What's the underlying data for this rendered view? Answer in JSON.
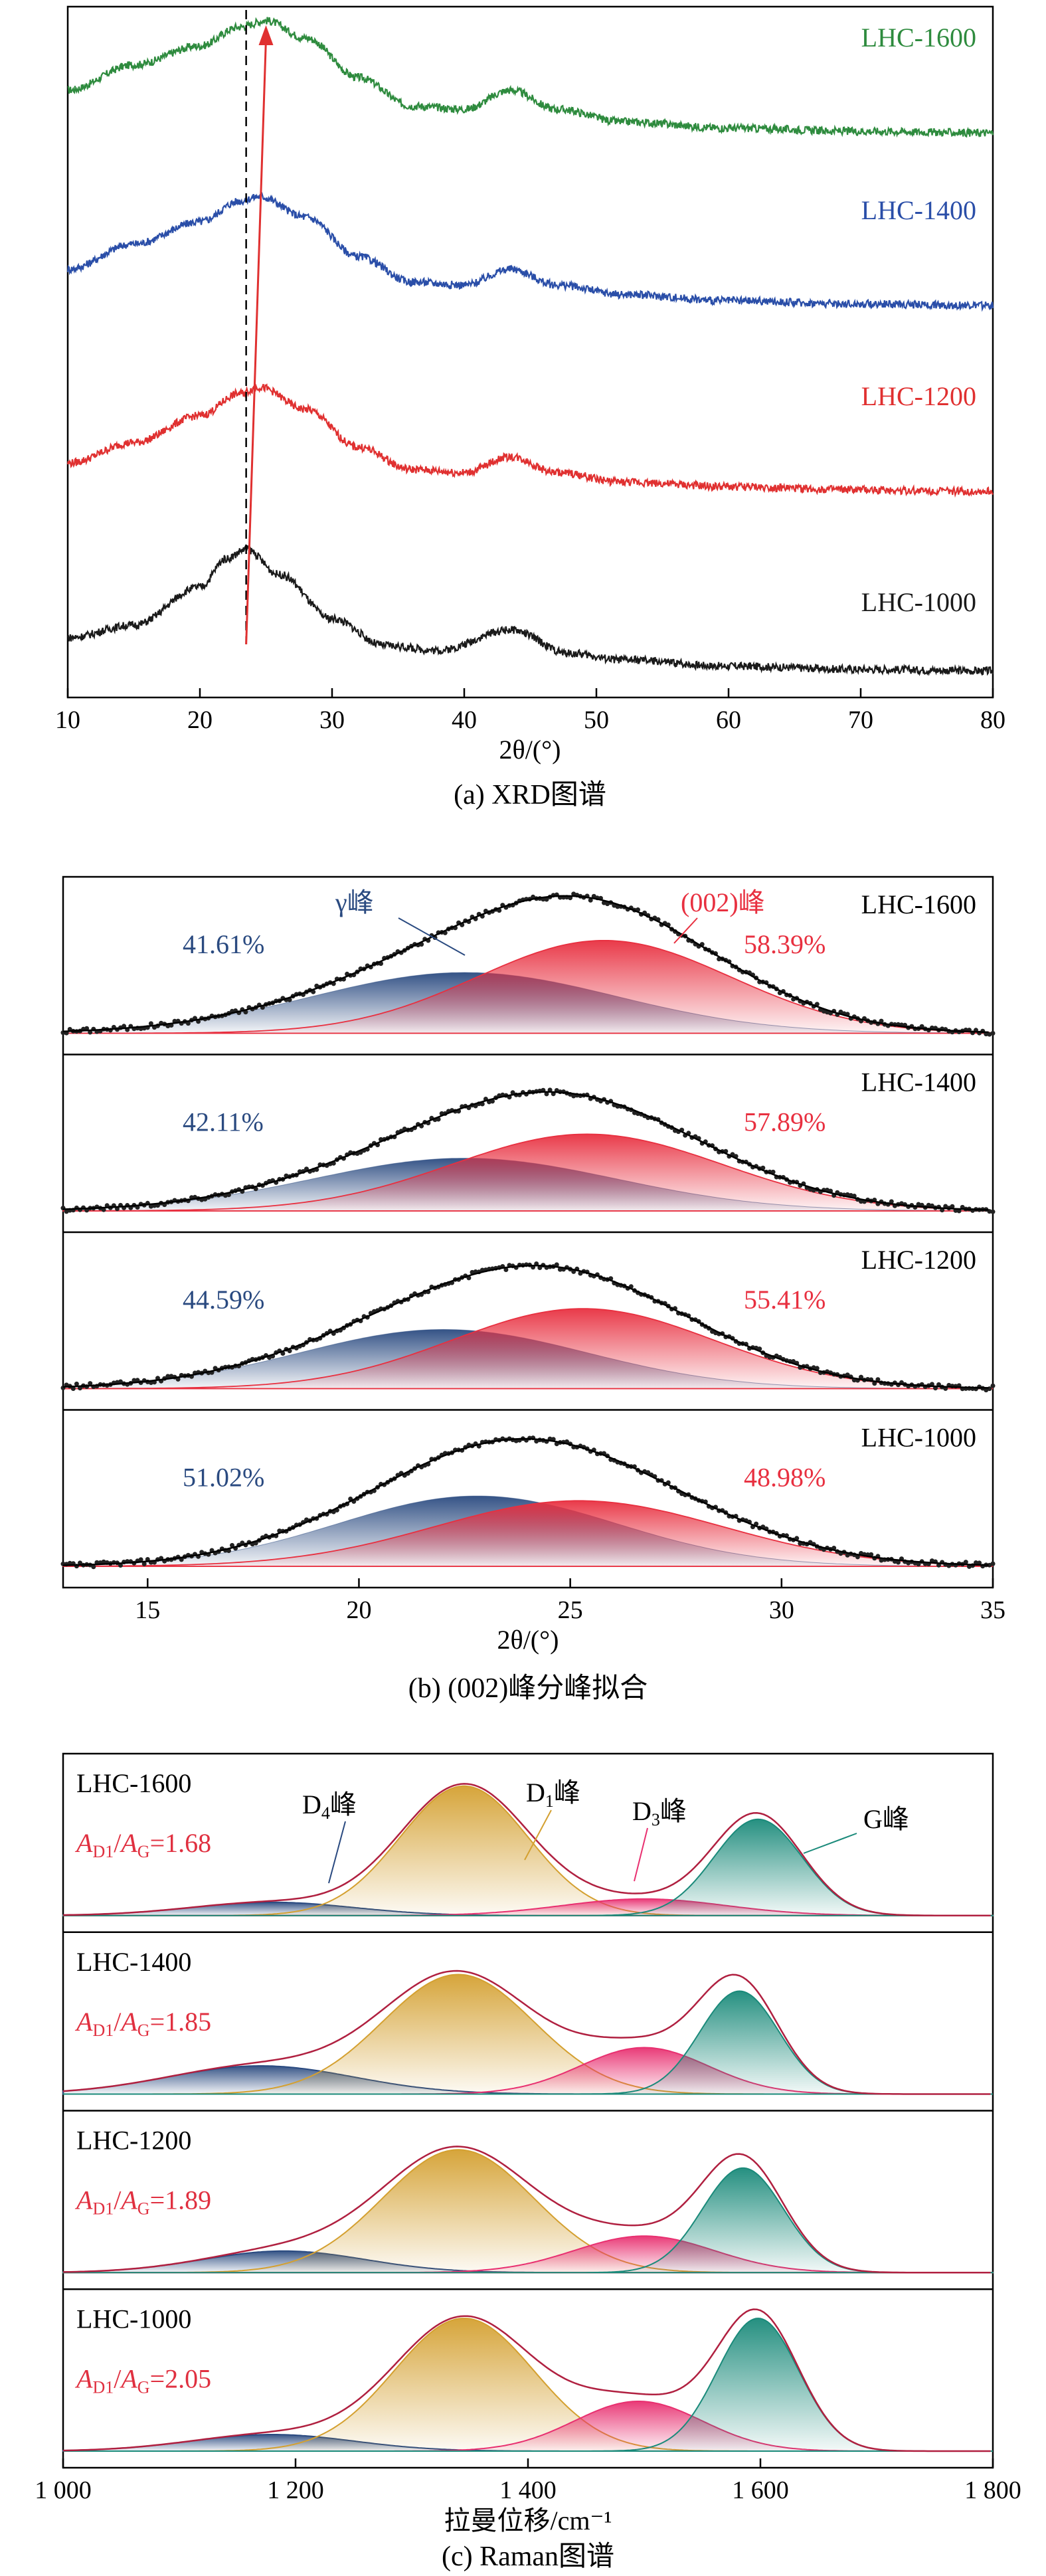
{
  "chart_data": [
    {
      "type": "line",
      "panel": "a",
      "caption": "(a) XRD图谱",
      "xlabel": "2θ/(°)",
      "xlim": [
        10,
        80
      ],
      "xticks": [
        "10",
        "20",
        "30",
        "40",
        "50",
        "60",
        "70",
        "80"
      ],
      "y_axis_ticks": false,
      "reference_line_x": 23.5,
      "shift_arrow": {
        "from": [
          23.5,
          "LHC-1000"
        ],
        "to": [
          25.0,
          "LHC-1600"
        ],
        "color": "#e03030"
      },
      "series": [
        {
          "name": "LHC-1600",
          "color": "#2e8b3e",
          "peaks_2theta": [
            25.0,
            43.5
          ],
          "x": [
            10,
            15,
            20,
            23,
            25,
            28,
            32,
            36,
            40,
            43.5,
            47,
            52,
            60,
            70,
            80
          ],
          "y": [
            0.62,
            0.78,
            0.9,
            1.02,
            1.06,
            0.95,
            0.7,
            0.52,
            0.5,
            0.62,
            0.5,
            0.42,
            0.38,
            0.36,
            0.35
          ]
        },
        {
          "name": "LHC-1400",
          "color": "#2a4ea8",
          "peaks_2theta": [
            24.0,
            43.5
          ],
          "x": [
            10,
            15,
            20,
            23,
            24.5,
            28,
            32,
            36,
            40,
            43.5,
            47,
            52,
            60,
            70,
            80
          ],
          "y": [
            0.52,
            0.68,
            0.82,
            0.95,
            0.98,
            0.85,
            0.6,
            0.44,
            0.42,
            0.52,
            0.42,
            0.36,
            0.32,
            0.3,
            0.29
          ]
        },
        {
          "name": "LHC-1200",
          "color": "#e03030",
          "peaks_2theta": [
            24.0,
            43.5
          ],
          "x": [
            10,
            15,
            20,
            23,
            24.5,
            28,
            32,
            36,
            40,
            43.5,
            47,
            52,
            60,
            70,
            80
          ],
          "y": [
            0.42,
            0.55,
            0.72,
            0.86,
            0.9,
            0.76,
            0.52,
            0.38,
            0.36,
            0.46,
            0.36,
            0.3,
            0.27,
            0.25,
            0.24
          ]
        },
        {
          "name": "LHC-1000",
          "color": "#1a1a1a",
          "peaks_2theta": [
            23.5,
            43.5
          ],
          "x": [
            10,
            15,
            20,
            22,
            23.5,
            26,
            30,
            34,
            38,
            43.5,
            48,
            52,
            60,
            70,
            80
          ],
          "y": [
            0.3,
            0.38,
            0.62,
            0.8,
            0.86,
            0.7,
            0.42,
            0.25,
            0.22,
            0.35,
            0.2,
            0.16,
            0.12,
            0.1,
            0.09
          ]
        }
      ]
    },
    {
      "type": "area",
      "panel": "b",
      "caption": "(b) (002)峰分峰拟合",
      "xlabel": "2θ/(°)",
      "xlim": [
        13,
        35
      ],
      "xticks": [
        "15",
        "20",
        "25",
        "30",
        "35"
      ],
      "annotations": {
        "gamma": "γ峰",
        "p002": "(002)峰"
      },
      "gamma_color": "#2a4a80",
      "p002_color": "#e83040",
      "subpanels": [
        {
          "name": "LHC-1600",
          "gamma_pct": "41.61%",
          "p002_pct": "58.39%",
          "gamma_center": 22.5,
          "gamma_width": 3.6,
          "gamma_height": 0.38,
          "p002_center": 25.8,
          "p002_width": 3.0,
          "p002_height": 0.58
        },
        {
          "name": "LHC-1400",
          "gamma_pct": "42.11%",
          "p002_pct": "57.89%",
          "gamma_center": 22.5,
          "gamma_width": 3.6,
          "gamma_height": 0.33,
          "p002_center": 25.4,
          "p002_width": 3.2,
          "p002_height": 0.48
        },
        {
          "name": "LHC-1200",
          "gamma_pct": "44.59%",
          "p002_pct": "55.41%",
          "gamma_center": 22.0,
          "gamma_width": 3.4,
          "gamma_height": 0.37,
          "p002_center": 25.3,
          "p002_width": 3.1,
          "p002_height": 0.5
        },
        {
          "name": "LHC-1000",
          "gamma_pct": "51.02%",
          "p002_pct": "48.98%",
          "gamma_center": 22.8,
          "gamma_width": 3.3,
          "gamma_height": 0.44,
          "p002_center": 25.2,
          "p002_width": 3.4,
          "p002_height": 0.41
        }
      ]
    },
    {
      "type": "area",
      "panel": "c",
      "caption": "(c) Raman图谱",
      "xlabel": "拉曼位移/cm⁻¹",
      "xlim": [
        1000,
        1800
      ],
      "xticks": [
        "1 000",
        "1 200",
        "1 400",
        "1 600",
        "1 800"
      ],
      "peak_labels": {
        "D4": "D",
        "D4_sub": "4",
        "D1": "D",
        "D1_sub": "1",
        "D3": "D",
        "D3_sub": "3",
        "G": "G",
        "suffix": "峰"
      },
      "ratio_label": {
        "a": "A",
        "d1": "D1",
        "g": "G"
      },
      "colors": {
        "D4": "#2a4a80",
        "D1": "#d4a030",
        "D3": "#e83070",
        "G": "#1a8a7a",
        "fit": "#b02040"
      },
      "subpanels": [
        {
          "name": "LHC-1600",
          "ratio": "=1.68",
          "peaks": {
            "D4": [
              1180,
              70,
              0.08
            ],
            "D1": [
              1345,
              55,
              0.78
            ],
            "D3": [
              1500,
              70,
              0.1
            ],
            "G": [
              1598,
              38,
              0.58
            ]
          }
        },
        {
          "name": "LHC-1400",
          "ratio": "=1.85",
          "peaks": {
            "D4": [
              1170,
              80,
              0.17
            ],
            "D1": [
              1340,
              65,
              0.72
            ],
            "D3": [
              1500,
              55,
              0.28
            ],
            "G": [
              1582,
              34,
              0.62
            ]
          }
        },
        {
          "name": "LHC-1200",
          "ratio": "=1.89",
          "peaks": {
            "D4": [
              1190,
              70,
              0.13
            ],
            "D1": [
              1340,
              65,
              0.74
            ],
            "D3": [
              1500,
              60,
              0.22
            ],
            "G": [
              1585,
              35,
              0.63
            ]
          }
        },
        {
          "name": "LHC-1000",
          "ratio": "=2.05",
          "peaks": {
            "D4": [
              1180,
              70,
              0.1
            ],
            "D1": [
              1345,
              60,
              0.8
            ],
            "D3": [
              1495,
              55,
              0.3
            ],
            "G": [
              1598,
              35,
              0.8
            ]
          }
        }
      ]
    }
  ]
}
